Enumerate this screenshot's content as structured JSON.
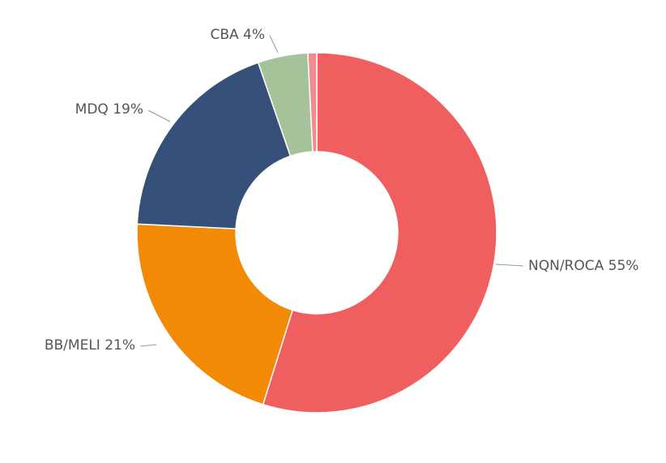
{
  "chart_data": {
    "type": "pie",
    "donut": true,
    "title": "",
    "legend": "none",
    "data_labels": "outside-with-leaders",
    "slices": [
      {
        "name": "NQN/ROCA",
        "value": 55,
        "label": "NQN/ROCA 55%",
        "color": "#f05f60"
      },
      {
        "name": "BB/MELI",
        "value": 21,
        "label": "BB/MELI 21%",
        "color": "#f28a06"
      },
      {
        "name": "MDQ",
        "value": 19,
        "label": "MDQ 19%",
        "color": "#365079"
      },
      {
        "name": "CBA",
        "value": 4.5,
        "label": "CBA 4%",
        "color": "#a6c29a"
      },
      {
        "name": "",
        "value": 0.8,
        "label": "",
        "color": "#f28b8b"
      }
    ]
  }
}
